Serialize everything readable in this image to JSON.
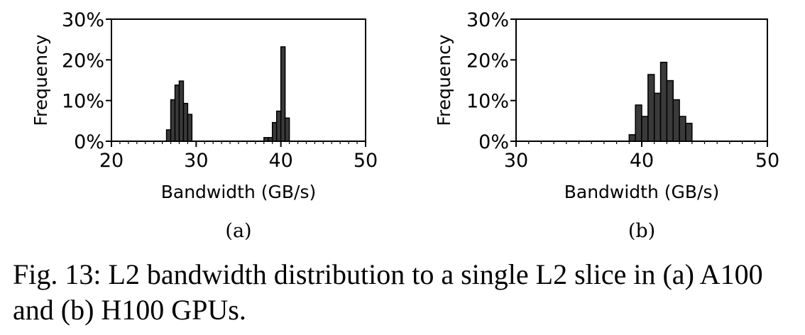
{
  "chart_data": [
    {
      "type": "bar",
      "subplot_label": "(a)",
      "xlabel": "Bandwidth (GB/s)",
      "ylabel": "Frequency",
      "xlim": [
        20,
        50
      ],
      "ylim": [
        0,
        30
      ],
      "xticks": [
        "20",
        "30",
        "40",
        "50"
      ],
      "yticks": [
        "0%",
        "10%",
        "20%",
        "30%"
      ],
      "bin_width": 0.5,
      "bins": [
        {
          "x": 26.75,
          "y": 2.8
        },
        {
          "x": 27.25,
          "y": 10.2
        },
        {
          "x": 27.75,
          "y": 13.8
        },
        {
          "x": 28.25,
          "y": 14.8
        },
        {
          "x": 28.75,
          "y": 9.3
        },
        {
          "x": 29.25,
          "y": 6.6
        },
        {
          "x": 38.25,
          "y": 0.9
        },
        {
          "x": 38.75,
          "y": 0.9
        },
        {
          "x": 39.25,
          "y": 4.6
        },
        {
          "x": 39.75,
          "y": 7.4
        },
        {
          "x": 40.25,
          "y": 23.2
        },
        {
          "x": 40.75,
          "y": 5.7
        }
      ]
    },
    {
      "type": "bar",
      "subplot_label": "(b)",
      "xlabel": "Bandwidth (GB/s)",
      "ylabel": "Frequency",
      "xlim": [
        30,
        50
      ],
      "ylim": [
        0,
        30
      ],
      "xticks": [
        "30",
        "40",
        "50"
      ],
      "yticks": [
        "0%",
        "10%",
        "20%",
        "30%"
      ],
      "bin_width": 0.5,
      "bins": [
        {
          "x": 39.25,
          "y": 1.6
        },
        {
          "x": 39.75,
          "y": 8.9
        },
        {
          "x": 40.25,
          "y": 6.1
        },
        {
          "x": 40.75,
          "y": 16.4
        },
        {
          "x": 41.25,
          "y": 11.8
        },
        {
          "x": 41.75,
          "y": 19.4
        },
        {
          "x": 42.25,
          "y": 14.9
        },
        {
          "x": 42.75,
          "y": 10.2
        },
        {
          "x": 43.25,
          "y": 6.1
        },
        {
          "x": 43.75,
          "y": 4.4
        }
      ]
    }
  ],
  "caption": "Fig. 13: L2 bandwidth distribution to a single L2 slice in (a) A100 and (b) H100 GPUs."
}
